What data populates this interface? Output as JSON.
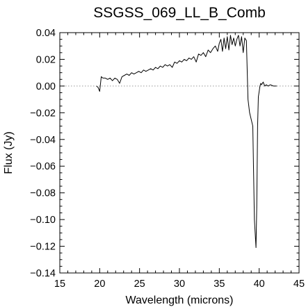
{
  "chart_data": {
    "type": "line",
    "title": "SSGSS_069_LL_B_Comb",
    "xlabel": "Wavelength (microns)",
    "ylabel": "Flux (Jy)",
    "xlim": [
      15,
      45
    ],
    "ylim": [
      -0.14,
      0.04
    ],
    "x_ticks": [
      15,
      20,
      25,
      30,
      35,
      40,
      45
    ],
    "x_tick_labels": [
      "15",
      "20",
      "25",
      "30",
      "35",
      "40",
      "45"
    ],
    "y_ticks": [
      0.04,
      0.02,
      0.0,
      -0.02,
      -0.04,
      -0.06,
      -0.08,
      -0.1,
      -0.12,
      -0.14
    ],
    "y_tick_labels": [
      "0.04",
      "0.02",
      "0.00",
      "−0.02",
      "−0.04",
      "−0.06",
      "−0.08",
      "−0.10",
      "−0.12",
      "−0.14"
    ],
    "grid": false,
    "reference_line": {
      "y": 0.0,
      "style": "dotted",
      "color": "#999999"
    },
    "series": [
      {
        "color": "#000000",
        "x": [
          19.6,
          19.8,
          20.0,
          20.2,
          20.4,
          20.7,
          21.0,
          21.3,
          21.6,
          21.9,
          22.2,
          22.5,
          22.8,
          23.1,
          23.4,
          23.7,
          24.0,
          24.3,
          24.6,
          24.9,
          25.2,
          25.5,
          25.8,
          26.1,
          26.4,
          26.7,
          27.0,
          27.3,
          27.6,
          27.9,
          28.2,
          28.5,
          28.8,
          29.1,
          29.4,
          29.7,
          30.0,
          30.3,
          30.6,
          30.9,
          31.2,
          31.5,
          31.8,
          32.1,
          32.4,
          32.7,
          33.0,
          33.3,
          33.6,
          33.9,
          34.2,
          34.5,
          34.8,
          35.0,
          35.2,
          35.4,
          35.6,
          35.8,
          36.0,
          36.2,
          36.4,
          36.6,
          36.8,
          37.0,
          37.2,
          37.4,
          37.6,
          37.8,
          38.0,
          38.2,
          38.4,
          38.6,
          38.8,
          39.0,
          39.2,
          39.4,
          39.6,
          39.7,
          39.8,
          39.9,
          40.0,
          40.1,
          40.2,
          40.3,
          40.5,
          40.7,
          40.9,
          41.1,
          41.4,
          41.8,
          42.2
        ],
        "y": [
          0.0,
          -0.001,
          -0.004,
          0.007,
          0.006,
          0.006,
          0.005,
          0.006,
          0.004,
          0.006,
          0.005,
          0.002,
          0.007,
          0.008,
          0.009,
          0.008,
          0.01,
          0.009,
          0.01,
          0.011,
          0.01,
          0.012,
          0.011,
          0.012,
          0.013,
          0.012,
          0.014,
          0.013,
          0.015,
          0.014,
          0.016,
          0.015,
          0.016,
          0.014,
          0.018,
          0.017,
          0.019,
          0.018,
          0.02,
          0.019,
          0.021,
          0.02,
          0.022,
          0.018,
          0.024,
          0.023,
          0.025,
          0.022,
          0.027,
          0.025,
          0.028,
          0.03,
          0.026,
          0.032,
          0.035,
          0.026,
          0.036,
          0.028,
          0.037,
          0.027,
          0.038,
          0.031,
          0.036,
          0.03,
          0.035,
          0.038,
          0.03,
          0.037,
          0.025,
          0.036,
          0.034,
          -0.01,
          -0.02,
          -0.025,
          -0.03,
          -0.1,
          -0.121,
          -0.09,
          -0.03,
          -0.008,
          -0.004,
          0.0,
          0.002,
          0.001,
          0.003,
          0.0,
          0.001,
          0.0,
          0.001,
          0.0,
          0.0
        ]
      }
    ]
  }
}
